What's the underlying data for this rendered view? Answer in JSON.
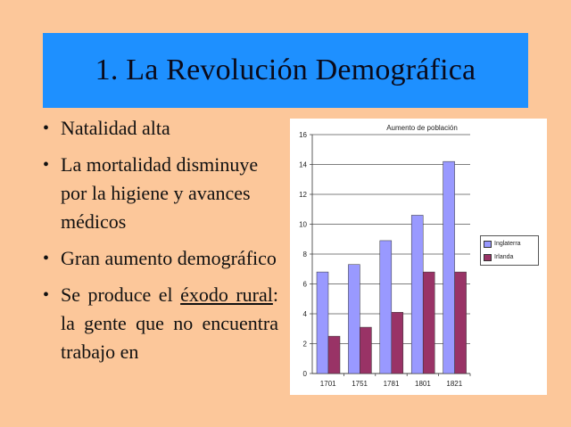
{
  "slide": {
    "title": "1. La Revolución Demográfica"
  },
  "bullets": [
    {
      "text": "Natalidad alta"
    },
    {
      "text": "La mortalidad disminuye por la higiene y avances médicos"
    },
    {
      "text": "Gran aumento demográfico"
    },
    {
      "part1": "Se produce el ",
      "u1": "éxodo rural",
      "part2": ": la gente que no encuentra trabajo en"
    }
  ],
  "colors": {
    "background": "#fcc79a",
    "title_bar": "#1e90ff",
    "series_inglaterra": "#9999ff",
    "series_irlanda": "#993366"
  },
  "chart_data": {
    "type": "bar",
    "title": "Aumento de población",
    "categories": [
      "1701",
      "1751",
      "1781",
      "1801",
      "1821"
    ],
    "series": [
      {
        "name": "Inglaterra",
        "values": [
          6.8,
          7.3,
          8.9,
          10.6,
          14.2
        ]
      },
      {
        "name": "Irlanda",
        "values": [
          2.5,
          3.1,
          4.1,
          6.8,
          6.8
        ]
      }
    ],
    "ylim": [
      0,
      16
    ],
    "yticks": [
      "0",
      "2",
      "4",
      "6",
      "8",
      "10",
      "12",
      "14",
      "16"
    ],
    "grid": true,
    "legend_position": "right"
  }
}
